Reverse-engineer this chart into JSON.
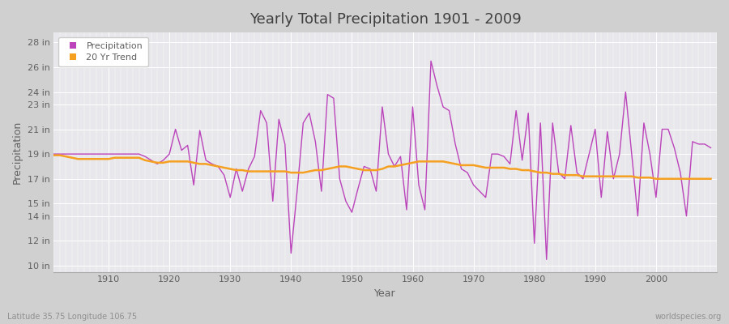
{
  "title": "Yearly Total Precipitation 1901 - 2009",
  "xlabel": "Year",
  "ylabel": "Precipitation",
  "figure_bg_color": "#d0d0d0",
  "plot_bg_color": "#e8e8ec",
  "precip_color": "#bb44bb",
  "trend_color": "#f5a020",
  "precip_label": "Precipitation",
  "trend_label": "20 Yr Trend",
  "footer_left": "Latitude 35.75 Longitude 106.75",
  "footer_right": "worldspecies.org",
  "yticks": [
    10,
    12,
    14,
    15,
    17,
    19,
    21,
    23,
    24,
    26,
    28
  ],
  "ylim": [
    9.5,
    28.8
  ],
  "xlim": [
    1901,
    2010
  ],
  "years": [
    1901,
    1902,
    1903,
    1904,
    1905,
    1906,
    1907,
    1908,
    1909,
    1910,
    1911,
    1912,
    1913,
    1914,
    1915,
    1916,
    1917,
    1918,
    1919,
    1920,
    1921,
    1922,
    1923,
    1924,
    1925,
    1926,
    1927,
    1928,
    1929,
    1930,
    1931,
    1932,
    1933,
    1934,
    1935,
    1936,
    1937,
    1938,
    1939,
    1940,
    1941,
    1942,
    1943,
    1944,
    1945,
    1946,
    1947,
    1948,
    1949,
    1950,
    1951,
    1952,
    1953,
    1954,
    1955,
    1956,
    1957,
    1958,
    1959,
    1960,
    1961,
    1962,
    1963,
    1964,
    1965,
    1966,
    1967,
    1968,
    1969,
    1970,
    1971,
    1972,
    1973,
    1974,
    1975,
    1976,
    1977,
    1978,
    1979,
    1980,
    1981,
    1982,
    1983,
    1984,
    1985,
    1986,
    1987,
    1988,
    1989,
    1990,
    1991,
    1992,
    1993,
    1994,
    1995,
    1996,
    1997,
    1998,
    1999,
    2000,
    2001,
    2002,
    2003,
    2004,
    2005,
    2006,
    2007,
    2008,
    2009
  ],
  "precip": [
    19.0,
    19.0,
    19.0,
    19.0,
    19.0,
    19.0,
    19.0,
    19.0,
    19.0,
    19.0,
    19.0,
    19.0,
    19.0,
    19.0,
    19.0,
    18.8,
    18.5,
    18.2,
    18.5,
    19.0,
    21.0,
    19.3,
    19.7,
    16.5,
    20.9,
    18.5,
    18.2,
    18.0,
    17.3,
    15.5,
    17.8,
    16.0,
    17.8,
    18.8,
    22.5,
    21.5,
    15.2,
    21.8,
    19.8,
    11.0,
    16.0,
    21.5,
    22.3,
    20.0,
    16.0,
    23.8,
    23.5,
    17.0,
    15.2,
    14.3,
    16.2,
    18.0,
    17.8,
    16.0,
    22.8,
    19.0,
    18.0,
    18.8,
    14.5,
    22.8,
    16.5,
    14.5,
    26.5,
    24.5,
    22.8,
    22.5,
    19.8,
    17.8,
    17.5,
    16.5,
    16.0,
    15.5,
    19.0,
    19.0,
    18.8,
    18.2,
    22.5,
    18.5,
    22.3,
    11.8,
    21.5,
    10.5,
    21.5,
    17.5,
    17.0,
    21.3,
    17.5,
    17.0,
    19.0,
    21.0,
    15.5,
    20.8,
    17.0,
    19.0,
    24.0,
    19.0,
    14.0,
    21.5,
    19.0,
    15.5,
    21.0,
    21.0,
    19.5,
    17.5,
    14.0,
    20.0,
    19.8,
    19.8,
    19.5
  ],
  "trend": [
    18.9,
    18.9,
    18.8,
    18.7,
    18.6,
    18.6,
    18.6,
    18.6,
    18.6,
    18.6,
    18.7,
    18.7,
    18.7,
    18.7,
    18.7,
    18.5,
    18.4,
    18.3,
    18.3,
    18.4,
    18.4,
    18.4,
    18.4,
    18.3,
    18.2,
    18.2,
    18.1,
    18.0,
    17.9,
    17.8,
    17.7,
    17.7,
    17.6,
    17.6,
    17.6,
    17.6,
    17.6,
    17.6,
    17.6,
    17.5,
    17.5,
    17.5,
    17.6,
    17.7,
    17.7,
    17.8,
    17.9,
    18.0,
    18.0,
    17.9,
    17.8,
    17.7,
    17.7,
    17.7,
    17.8,
    18.0,
    18.0,
    18.1,
    18.2,
    18.3,
    18.4,
    18.4,
    18.4,
    18.4,
    18.4,
    18.3,
    18.2,
    18.1,
    18.1,
    18.1,
    18.0,
    17.9,
    17.9,
    17.9,
    17.9,
    17.8,
    17.8,
    17.7,
    17.7,
    17.6,
    17.5,
    17.5,
    17.4,
    17.4,
    17.3,
    17.3,
    17.3,
    17.2,
    17.2,
    17.2,
    17.2,
    17.2,
    17.2,
    17.2,
    17.2,
    17.2,
    17.1,
    17.1,
    17.1,
    17.0,
    17.0,
    17.0,
    17.0,
    17.0,
    17.0,
    17.0,
    17.0,
    17.0,
    17.0
  ]
}
